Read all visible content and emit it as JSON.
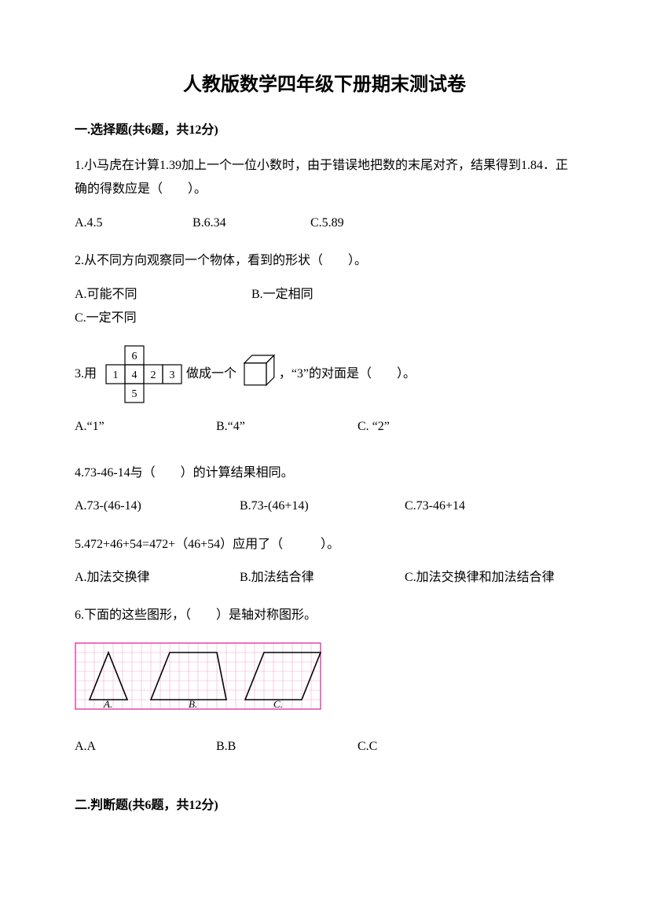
{
  "title": "人教版数学四年级下册期末测试卷",
  "section1": {
    "heading": "一.选择题(共6题，共12分)"
  },
  "q1": {
    "text": "1.小马虎在计算1.39加上一个一位小数时，由于错误地把数的末尾对齐，结果得到1.84．正确的得数应是（　　）。",
    "A": "A.4.5",
    "B": "B.6.34",
    "C": "C.5.89"
  },
  "q2": {
    "text": "2.从不同方向观察同一个物体，看到的形状（　　）。",
    "A": "A.可能不同",
    "B": "B.一定相同",
    "C": "C.一定不同"
  },
  "q3": {
    "pre": "3.用",
    "mid": "做成一个",
    "post": "，“3”的对面是（　　）。",
    "A": "A.“1”",
    "B": "B.“4”",
    "C": "C. “2”",
    "net": {
      "cell": 24,
      "stroke": "#000000",
      "labels": [
        "6",
        "1",
        "4",
        "2",
        "3",
        "5"
      ]
    },
    "cube": {
      "size": 28,
      "stroke": "#000000"
    }
  },
  "q4": {
    "text": "4.73-46-14与（　　）的计算结果相同。",
    "A": "A.73-(46-14)",
    "B": "B.73-(46+14)",
    "C": "C.73-46+14"
  },
  "q5": {
    "text": "5.472+46+54=472+（46+54）应用了（　　　）。",
    "A": "A.加法交换律",
    "B": "B.加法结合律",
    "C": "C.加法交换律和加法结合律"
  },
  "q6": {
    "text": "6.下面的这些图形，（　　）是轴对称图形。",
    "A": "A.A",
    "B": "B.B",
    "C": "C.C",
    "grid": {
      "cols": 26,
      "rows": 7,
      "cell": 12,
      "border": "#e23aa8",
      "grid_line": "#f4a8d6",
      "shape_stroke": "#000000",
      "labelA": "A.",
      "labelB": "B.",
      "labelC": "C."
    }
  },
  "section2": {
    "heading": "二.判断题(共6题，共12分)"
  }
}
